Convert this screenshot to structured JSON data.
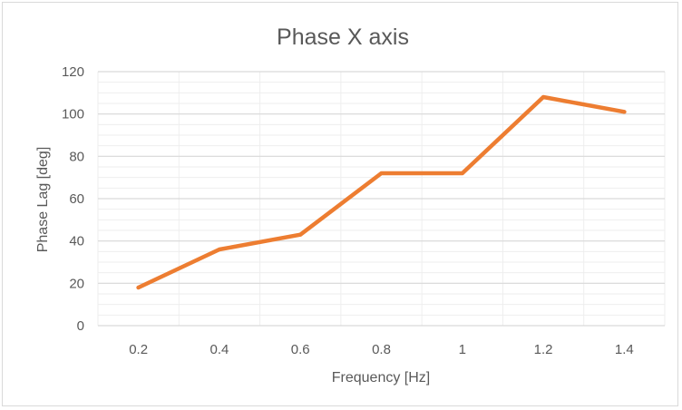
{
  "chart_data": {
    "type": "line",
    "title": "Phase X axis",
    "xlabel": "Frequency [Hz]",
    "ylabel": "Phase Lag [deg]",
    "categories": [
      "0.2",
      "0.4",
      "0.6",
      "0.8",
      "1",
      "1.2",
      "1.4"
    ],
    "series": [
      {
        "values": [
          18,
          36,
          43,
          72,
          72,
          108,
          101
        ]
      }
    ],
    "ylim": [
      0,
      120
    ],
    "yticks": [
      "0",
      "20",
      "40",
      "60",
      "80",
      "100",
      "120"
    ],
    "y_minor_step": 5,
    "grid": "major and minor horizontal, vertical",
    "legend": "none",
    "colors": {
      "line": "#ED7D31",
      "major_grid": "#d9d9d9",
      "minor_grid": "#eeeeee",
      "text": "#595959"
    }
  }
}
